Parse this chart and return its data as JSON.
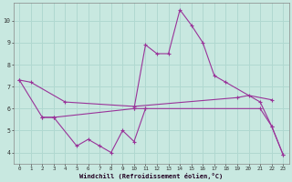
{
  "xlabel": "Windchill (Refroidissement éolien,°C)",
  "background_color": "#c8e8e0",
  "grid_color": "#b0d8d0",
  "line_color": "#993399",
  "xlim": [
    -0.5,
    23.5
  ],
  "ylim": [
    3.5,
    10.8
  ],
  "yticks": [
    4,
    5,
    6,
    7,
    8,
    9,
    10
  ],
  "xticks": [
    0,
    1,
    2,
    3,
    4,
    5,
    6,
    7,
    8,
    9,
    10,
    11,
    12,
    13,
    14,
    15,
    16,
    17,
    18,
    19,
    20,
    21,
    22,
    23
  ],
  "series": [
    {
      "x": [
        0,
        1,
        4,
        10,
        19,
        20,
        22
      ],
      "y": [
        7.3,
        7.2,
        6.3,
        6.1,
        6.5,
        6.6,
        6.4
      ]
    },
    {
      "x": [
        0,
        2,
        3,
        5,
        6,
        7,
        8,
        9,
        10,
        11
      ],
      "y": [
        7.3,
        5.6,
        5.6,
        4.3,
        4.6,
        4.3,
        4.0,
        5.0,
        4.5,
        6.0
      ]
    },
    {
      "x": [
        2,
        3,
        10,
        11,
        21,
        22,
        23
      ],
      "y": [
        5.6,
        5.6,
        6.0,
        6.0,
        6.0,
        5.2,
        3.9
      ]
    },
    {
      "x": [
        10,
        11,
        12,
        13,
        14,
        15,
        16,
        17,
        18,
        21,
        22,
        23
      ],
      "y": [
        6.0,
        8.9,
        8.5,
        8.5,
        10.5,
        9.8,
        9.0,
        7.5,
        7.2,
        6.3,
        5.2,
        3.9
      ]
    }
  ]
}
